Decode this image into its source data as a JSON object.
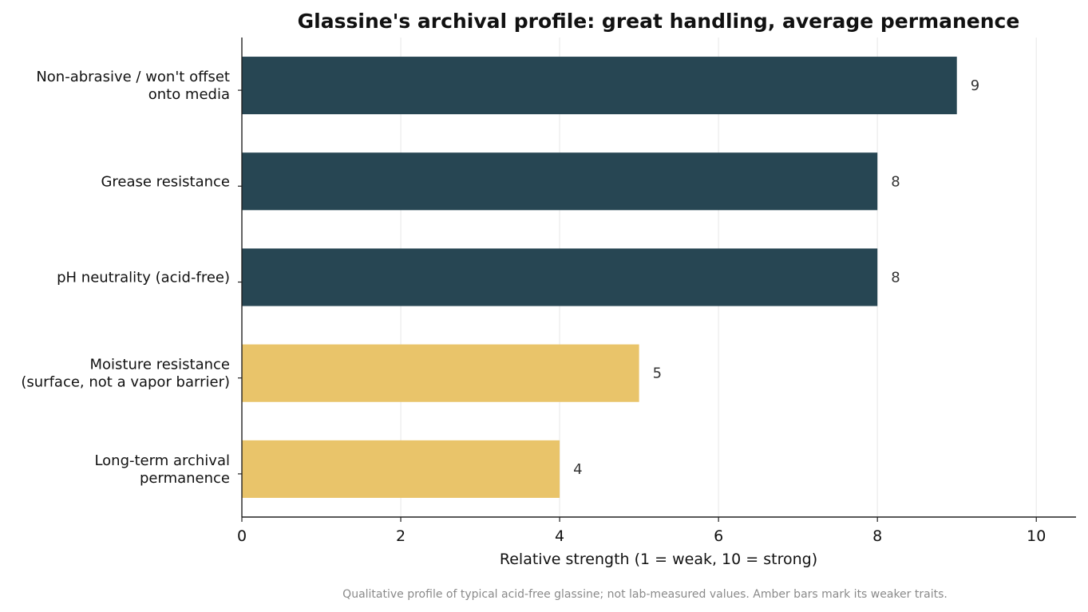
{
  "chart_data": {
    "type": "bar",
    "orientation": "horizontal",
    "title": "Glassine's archival profile: great handling, average permanence",
    "xlabel": "Relative strength (1 = weak, 10 = strong)",
    "ylabel": "",
    "xlim": [
      0,
      10.5
    ],
    "xticks": [
      0,
      2,
      4,
      6,
      8,
      10
    ],
    "grid": "vertical",
    "categories": [
      [
        "Non-abrasive / won't offset",
        "onto media"
      ],
      [
        "Grease resistance"
      ],
      [
        "pH neutrality (acid-free)"
      ],
      [
        "Moisture resistance",
        "(surface, not a vapor barrier)"
      ],
      [
        "Long-term archival",
        "permanence"
      ]
    ],
    "values": [
      9,
      8,
      8,
      5,
      4
    ],
    "bar_colors": [
      "#274653",
      "#274653",
      "#274653",
      "#e9c46a",
      "#e9c46a"
    ],
    "footnote": "Qualitative profile of typical acid-free glassine; not lab-measured values. Amber bars mark its weaker traits."
  }
}
